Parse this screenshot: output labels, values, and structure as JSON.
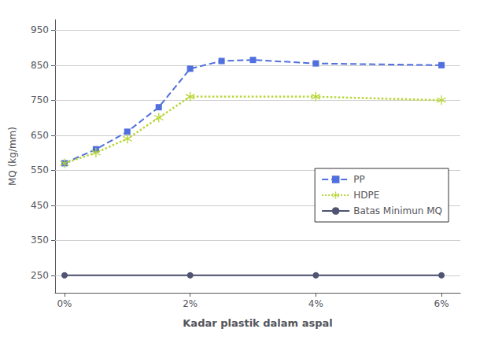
{
  "chart_data": {
    "type": "line",
    "xlabel": "Kadar plastik dalam aspal",
    "ylabel": "MQ (kg/mm)",
    "xlim": [
      -0.15,
      6.3
    ],
    "xticks": [
      {
        "value": 0,
        "label": "0%"
      },
      {
        "value": 2,
        "label": "2%"
      },
      {
        "value": 4,
        "label": "4%"
      },
      {
        "value": 6,
        "label": "6%"
      }
    ],
    "ylim": [
      200,
      980
    ],
    "yticks": [
      250,
      350,
      450,
      550,
      650,
      750,
      850,
      950
    ],
    "grid": true,
    "legend": "lower right",
    "series": [
      {
        "name": "PP",
        "x": [
          0,
          0.5,
          1,
          1.5,
          2,
          2.5,
          3,
          4,
          6
        ],
        "values": [
          570,
          610,
          660,
          730,
          840,
          862,
          865,
          855,
          850
        ],
        "line_style": "dashed",
        "marker": "square"
      },
      {
        "name": "HDPE",
        "x": [
          0,
          0.5,
          1,
          1.5,
          2,
          4,
          6
        ],
        "values": [
          570,
          600,
          640,
          700,
          760,
          760,
          750
        ],
        "line_style": "dotted",
        "marker": "asterisk"
      },
      {
        "name": "Batas Minimun MQ",
        "x": [
          0,
          2,
          4,
          6
        ],
        "values": [
          250,
          250,
          250,
          250
        ],
        "line_style": "solid",
        "marker": "circle"
      }
    ]
  }
}
